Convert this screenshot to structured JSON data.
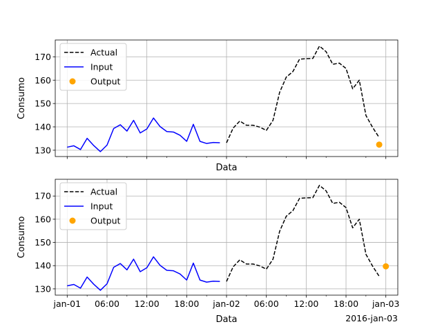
{
  "chart_data": [
    {
      "type": "line",
      "xlabel": "Data",
      "ylabel": "Consumo",
      "ylim": [
        127.3,
        177.2
      ],
      "yticks": [
        130,
        140,
        150,
        160,
        170
      ],
      "xlim": [
        -1.8,
        49.8
      ],
      "xtick_positions": [
        0,
        12,
        24,
        36,
        48
      ],
      "xtick_labels": [],
      "grid": true,
      "legend_position": "upper-left",
      "series": [
        {
          "name": "Actual",
          "style": "dashed",
          "color": "#000000",
          "x": [
            24,
            25,
            26,
            27,
            28,
            29,
            30,
            31,
            32,
            33,
            34,
            35,
            36,
            37,
            38,
            39,
            40,
            41,
            42,
            43,
            44,
            45,
            46,
            47
          ],
          "y": [
            133.2,
            139.5,
            142.5,
            140.7,
            140.7,
            139.9,
            138.5,
            142.8,
            154.8,
            161.3,
            163.7,
            169.0,
            169.2,
            169.3,
            174.6,
            172.2,
            166.8,
            167.3,
            165.0,
            156.3,
            160.0,
            144.9,
            139.8,
            135.4
          ]
        },
        {
          "name": "Input",
          "style": "solid",
          "color": "#0000ff",
          "x": [
            0,
            1,
            2,
            3,
            4,
            5,
            6,
            7,
            8,
            9,
            10,
            11,
            12,
            13,
            14,
            15,
            16,
            17,
            18,
            19,
            20,
            21,
            22,
            23
          ],
          "y": [
            131.3,
            131.9,
            130.3,
            135.1,
            132.0,
            129.4,
            132.2,
            139.3,
            140.9,
            138.2,
            142.8,
            137.4,
            139.1,
            143.8,
            140.1,
            138.0,
            137.8,
            136.4,
            133.8,
            141.1,
            133.8,
            132.9,
            133.3,
            133.2
          ]
        },
        {
          "name": "Output",
          "style": "marker",
          "color": "#ffa500",
          "x": [
            47
          ],
          "y": [
            132.4
          ]
        }
      ]
    },
    {
      "type": "line",
      "xlabel": "Data",
      "ylabel": "Consumo",
      "ylim": [
        127.3,
        177.2
      ],
      "yticks": [
        130,
        140,
        150,
        160,
        170
      ],
      "xlim": [
        -1.8,
        49.8
      ],
      "xtick_positions": [
        0,
        6,
        12,
        18,
        24,
        30,
        36,
        42,
        48
      ],
      "xtick_labels": [
        "jan-01",
        "06:00",
        "12:00",
        "18:00",
        "jan-02",
        "06:00",
        "12:00",
        "18:00",
        "jan-03"
      ],
      "offset_label": "2016-jan-03",
      "grid": true,
      "legend_position": "upper-left",
      "series": [
        {
          "name": "Actual",
          "style": "dashed",
          "color": "#000000",
          "x": [
            24,
            25,
            26,
            27,
            28,
            29,
            30,
            31,
            32,
            33,
            34,
            35,
            36,
            37,
            38,
            39,
            40,
            41,
            42,
            43,
            44,
            45,
            46,
            47
          ],
          "y": [
            133.2,
            139.5,
            142.5,
            140.7,
            140.7,
            139.9,
            138.5,
            142.8,
            154.8,
            161.3,
            163.7,
            169.0,
            169.2,
            169.3,
            174.6,
            172.2,
            166.8,
            167.3,
            165.0,
            156.3,
            160.0,
            144.9,
            139.8,
            135.4
          ]
        },
        {
          "name": "Input",
          "style": "solid",
          "color": "#0000ff",
          "x": [
            0,
            1,
            2,
            3,
            4,
            5,
            6,
            7,
            8,
            9,
            10,
            11,
            12,
            13,
            14,
            15,
            16,
            17,
            18,
            19,
            20,
            21,
            22,
            23
          ],
          "y": [
            131.3,
            131.9,
            130.3,
            135.1,
            132.0,
            129.4,
            132.2,
            139.3,
            140.9,
            138.2,
            142.8,
            137.4,
            139.1,
            143.8,
            140.1,
            138.0,
            137.8,
            136.4,
            133.8,
            141.1,
            133.8,
            132.9,
            133.3,
            133.2
          ]
        },
        {
          "name": "Output",
          "style": "marker",
          "color": "#ffa500",
          "x": [
            48
          ],
          "y": [
            139.7
          ]
        }
      ]
    }
  ]
}
